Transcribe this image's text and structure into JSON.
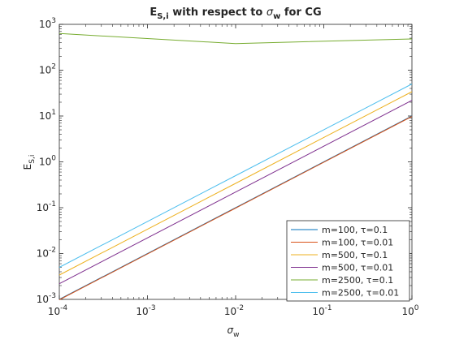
{
  "chart_data": {
    "type": "line",
    "title": "E",
    "title_sub": "S,i",
    "title_rest": " with respect to ",
    "title_sym": "σ",
    "title_sym_sub": "w",
    "title_end": " for CG",
    "xlabel": "σ",
    "xlabel_sub": "w",
    "ylabel": "E",
    "ylabel_sub": "S,i",
    "x_scale": "log",
    "y_scale": "log",
    "xlim": [
      0.0001,
      1
    ],
    "ylim": [
      0.001,
      1000
    ],
    "x_ticks": [
      {
        "value": 0.0001,
        "base": "10",
        "exp": "-4"
      },
      {
        "value": 0.001,
        "base": "10",
        "exp": "-3"
      },
      {
        "value": 0.01,
        "base": "10",
        "exp": "-2"
      },
      {
        "value": 0.1,
        "base": "10",
        "exp": "-1"
      },
      {
        "value": 1,
        "base": "10",
        "exp": "0"
      }
    ],
    "y_ticks": [
      {
        "value": 0.001,
        "base": "10",
        "exp": "-3"
      },
      {
        "value": 0.01,
        "base": "10",
        "exp": "-2"
      },
      {
        "value": 0.1,
        "base": "10",
        "exp": "-1"
      },
      {
        "value": 1,
        "base": "10",
        "exp": "0"
      },
      {
        "value": 10,
        "base": "10",
        "exp": "1"
      },
      {
        "value": 100,
        "base": "10",
        "exp": "2"
      },
      {
        "value": 1000,
        "base": "10",
        "exp": "3"
      }
    ],
    "grid": false,
    "legend_position": "bottom-right",
    "x": [
      0.0001,
      0.01,
      1
    ],
    "series": [
      {
        "name": "m=100, τ=0.1",
        "color": "#0072bd",
        "values": [
          0.001,
          0.1,
          10
        ]
      },
      {
        "name": "m=100, τ=0.01",
        "color": "#d95319",
        "values": [
          0.00098,
          0.098,
          9.8
        ]
      },
      {
        "name": "m=500, τ=0.1",
        "color": "#edb120",
        "values": [
          0.0034,
          0.34,
          34
        ]
      },
      {
        "name": "m=500, τ=0.01",
        "color": "#7e2f8e",
        "values": [
          0.0022,
          0.22,
          22
        ]
      },
      {
        "name": "m=2500, τ=0.1",
        "color": "#77ac30",
        "values": [
          630,
          380,
          480
        ]
      },
      {
        "name": "m=2500, τ=0.01",
        "color": "#4dbeee",
        "values": [
          0.005,
          0.5,
          50
        ]
      }
    ]
  }
}
